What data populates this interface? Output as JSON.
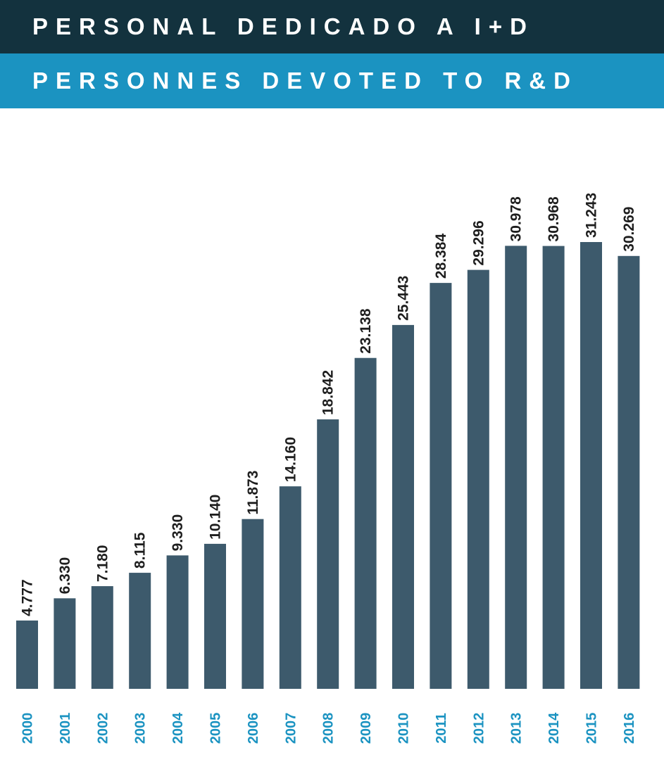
{
  "header": {
    "title_es": "PERSONAL DEDICADO A I+D",
    "title_fr_en": "PERSONNES DEVOTED TO R&D"
  },
  "colors": {
    "header_dark": "#13323e",
    "header_light": "#1b93c1",
    "bar": "#3d5a6c",
    "year_label": "#1b93c1",
    "value_label": "#1e1e1e"
  },
  "chart_data": {
    "type": "bar",
    "title": "",
    "xlabel": "",
    "ylabel": "",
    "categories": [
      "2000",
      "2001",
      "2002",
      "2003",
      "2004",
      "2005",
      "2006",
      "2007",
      "2008",
      "2009",
      "2010",
      "2011",
      "2012",
      "2013",
      "2014",
      "2015",
      "2016"
    ],
    "values": [
      4777,
      6330,
      7180,
      8115,
      9330,
      10140,
      11873,
      14160,
      18842,
      23138,
      25443,
      28384,
      29296,
      30978,
      30968,
      31243,
      30269
    ],
    "value_labels": [
      "4.777",
      "6.330",
      "7.180",
      "8.115",
      "9.330",
      "10.140",
      "11.873",
      "14.160",
      "18.842",
      "23.138",
      "25.443",
      "28.384",
      "29.296",
      "30.978",
      "30.968",
      "31.243",
      "30.269"
    ],
    "ylim": [
      0,
      31243
    ],
    "grid": false,
    "legend": "none"
  }
}
